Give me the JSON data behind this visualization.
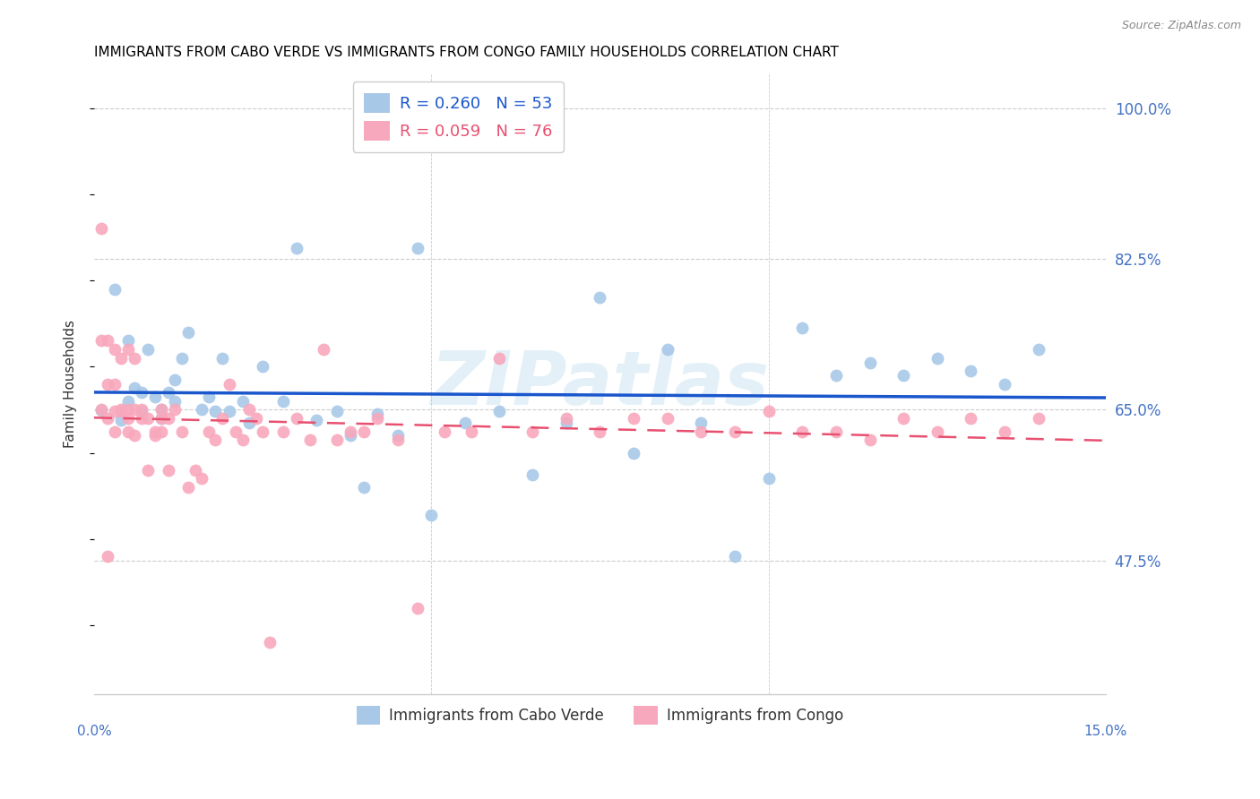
{
  "title": "IMMIGRANTS FROM CABO VERDE VS IMMIGRANTS FROM CONGO FAMILY HOUSEHOLDS CORRELATION CHART",
  "source": "Source: ZipAtlas.com",
  "ylabel": "Family Households",
  "ytick_vals": [
    0.475,
    0.65,
    0.825,
    1.0
  ],
  "ytick_labels": [
    "47.5%",
    "65.0%",
    "82.5%",
    "100.0%"
  ],
  "xmin": 0.0,
  "xmax": 0.15,
  "ymin": 0.32,
  "ymax": 1.04,
  "cabo_verde_color": "#a8c8e8",
  "congo_color": "#f8a8bc",
  "cabo_verde_line_color": "#1a56cc",
  "congo_line_color": "#e85070",
  "cabo_verde_R": 0.26,
  "cabo_verde_N": 53,
  "congo_R": 0.059,
  "congo_N": 76,
  "cabo_verde_x": [
    0.001,
    0.003,
    0.004,
    0.005,
    0.005,
    0.006,
    0.007,
    0.007,
    0.008,
    0.009,
    0.01,
    0.01,
    0.011,
    0.012,
    0.012,
    0.013,
    0.014,
    0.016,
    0.017,
    0.018,
    0.019,
    0.02,
    0.022,
    0.023,
    0.025,
    0.028,
    0.03,
    0.033,
    0.036,
    0.038,
    0.04,
    0.042,
    0.045,
    0.048,
    0.05,
    0.055,
    0.06,
    0.065,
    0.07,
    0.075,
    0.08,
    0.085,
    0.09,
    0.095,
    0.1,
    0.105,
    0.11,
    0.115,
    0.12,
    0.125,
    0.13,
    0.135,
    0.14
  ],
  "cabo_verde_y": [
    0.649,
    0.79,
    0.638,
    0.66,
    0.73,
    0.675,
    0.67,
    0.648,
    0.72,
    0.665,
    0.65,
    0.64,
    0.67,
    0.685,
    0.66,
    0.71,
    0.74,
    0.65,
    0.665,
    0.648,
    0.71,
    0.648,
    0.66,
    0.635,
    0.7,
    0.66,
    0.838,
    0.638,
    0.648,
    0.62,
    0.56,
    0.645,
    0.62,
    0.838,
    0.528,
    0.635,
    0.648,
    0.575,
    0.635,
    0.78,
    0.6,
    0.72,
    0.635,
    0.48,
    0.57,
    0.745,
    0.69,
    0.705,
    0.69,
    0.71,
    0.695,
    0.68,
    0.72
  ],
  "congo_x": [
    0.001,
    0.001,
    0.001,
    0.002,
    0.002,
    0.002,
    0.002,
    0.003,
    0.003,
    0.003,
    0.003,
    0.004,
    0.004,
    0.004,
    0.005,
    0.005,
    0.005,
    0.005,
    0.006,
    0.006,
    0.006,
    0.007,
    0.007,
    0.008,
    0.008,
    0.009,
    0.009,
    0.01,
    0.01,
    0.01,
    0.011,
    0.011,
    0.012,
    0.013,
    0.014,
    0.015,
    0.016,
    0.017,
    0.018,
    0.019,
    0.02,
    0.021,
    0.022,
    0.023,
    0.024,
    0.025,
    0.026,
    0.028,
    0.03,
    0.032,
    0.034,
    0.036,
    0.038,
    0.04,
    0.042,
    0.045,
    0.048,
    0.052,
    0.056,
    0.06,
    0.065,
    0.07,
    0.075,
    0.08,
    0.085,
    0.09,
    0.095,
    0.1,
    0.105,
    0.11,
    0.115,
    0.12,
    0.125,
    0.13,
    0.135,
    0.14
  ],
  "congo_y": [
    0.86,
    0.73,
    0.65,
    0.48,
    0.64,
    0.73,
    0.68,
    0.648,
    0.625,
    0.72,
    0.68,
    0.65,
    0.648,
    0.71,
    0.64,
    0.625,
    0.65,
    0.72,
    0.71,
    0.65,
    0.62,
    0.64,
    0.65,
    0.64,
    0.58,
    0.62,
    0.625,
    0.625,
    0.64,
    0.65,
    0.64,
    0.58,
    0.65,
    0.625,
    0.56,
    0.58,
    0.57,
    0.625,
    0.615,
    0.64,
    0.68,
    0.625,
    0.615,
    0.65,
    0.64,
    0.625,
    0.38,
    0.625,
    0.64,
    0.615,
    0.72,
    0.615,
    0.625,
    0.625,
    0.64,
    0.615,
    0.42,
    0.625,
    0.625,
    0.71,
    0.625,
    0.64,
    0.625,
    0.64,
    0.64,
    0.625,
    0.625,
    0.648,
    0.625,
    0.625,
    0.615,
    0.64,
    0.625,
    0.64,
    0.625,
    0.64
  ],
  "watermark": "ZIPatlas",
  "background_color": "#ffffff",
  "grid_color": "#cccccc",
  "axis_color": "#4472c4",
  "title_fontsize": 11,
  "marker_size": 100
}
